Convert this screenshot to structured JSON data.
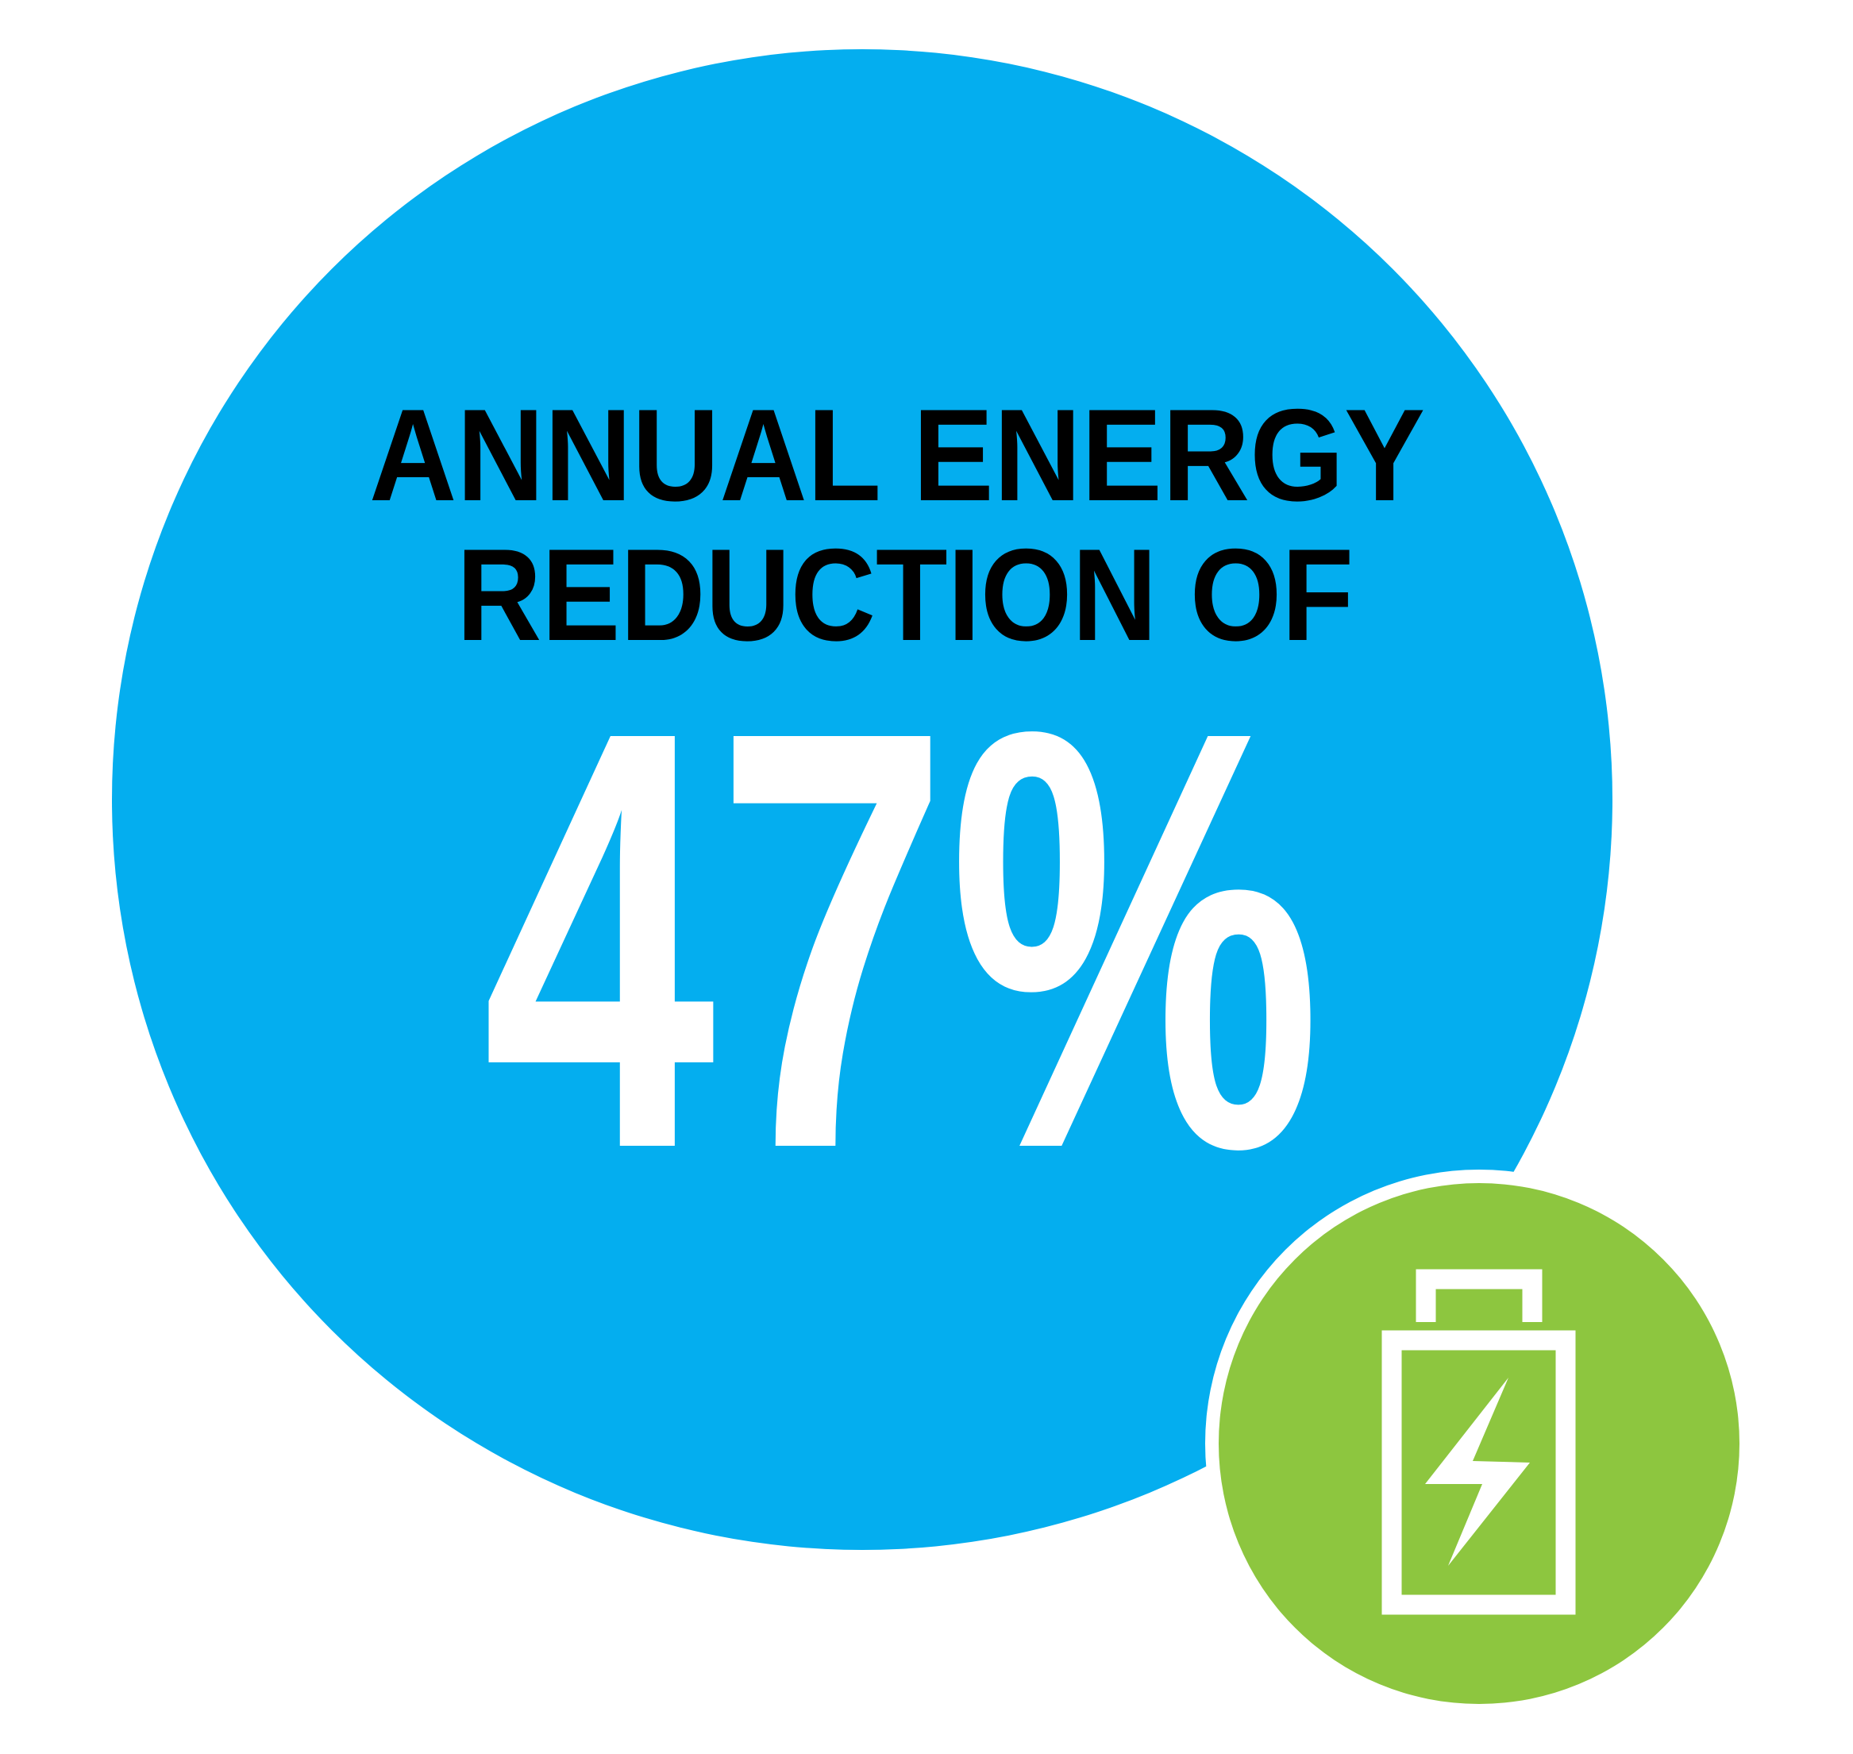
{
  "heading": {
    "lines": [
      "ANNUAL ENERGY",
      "REDUCTION OF"
    ]
  },
  "highlight": {
    "text": "47%"
  }
}
